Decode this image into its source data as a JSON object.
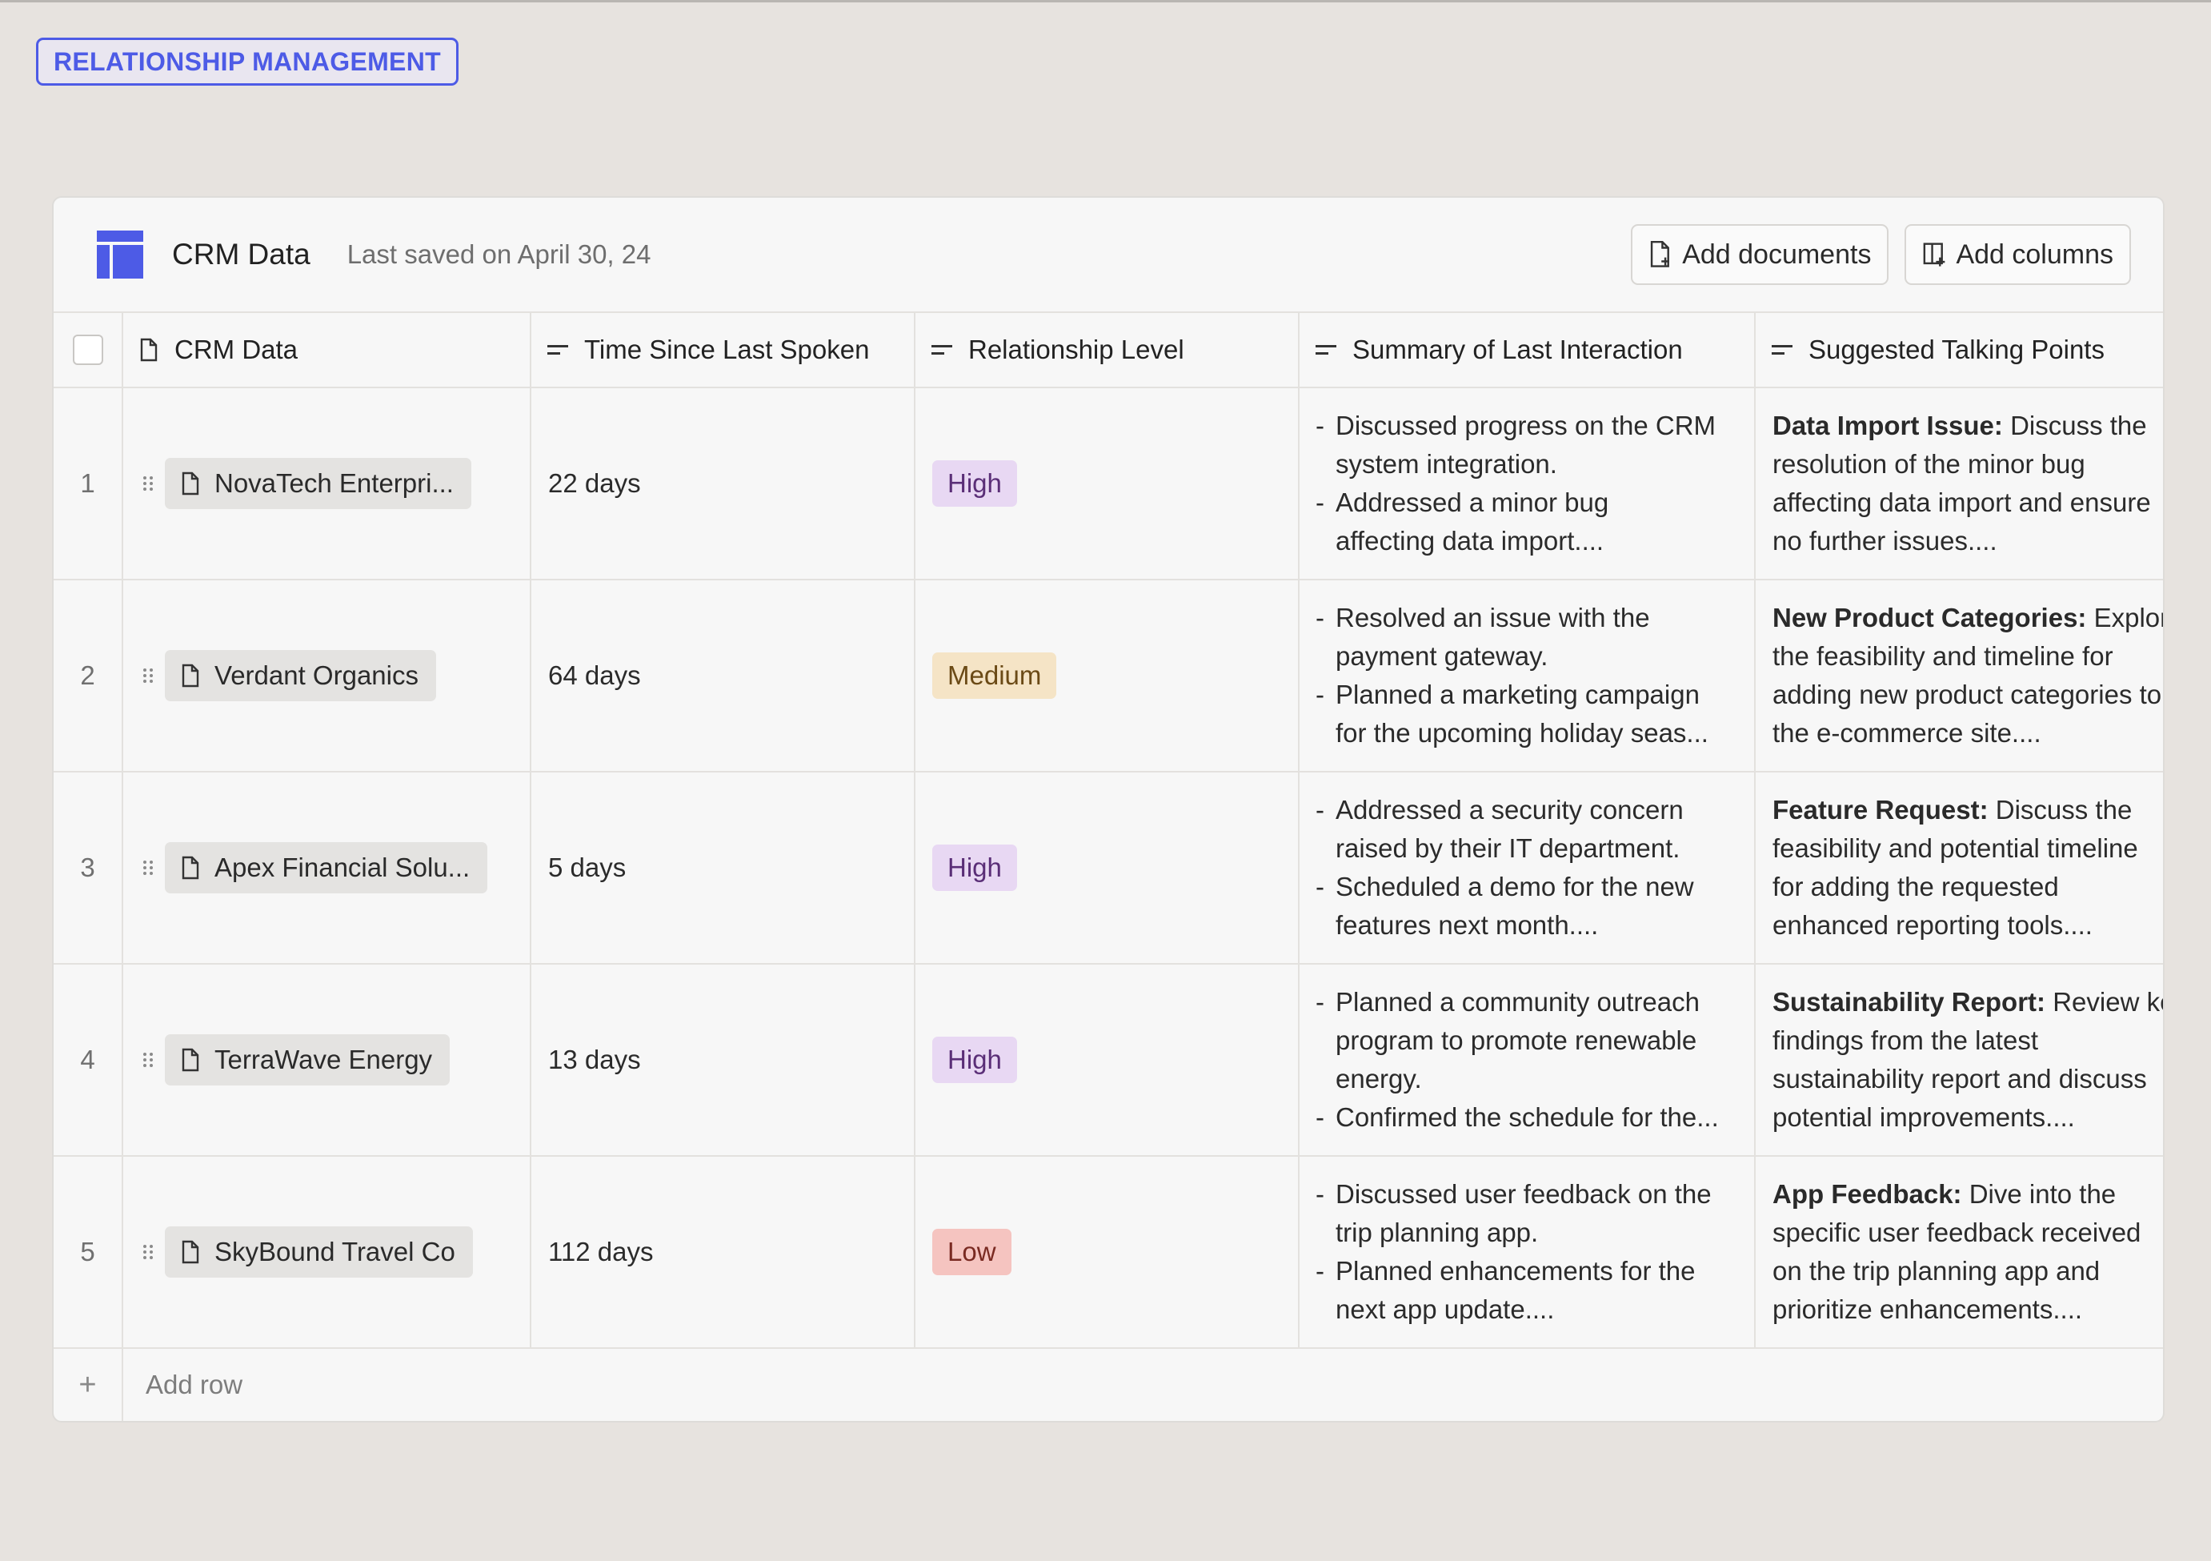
{
  "tag": "RELATIONSHIP MANAGEMENT",
  "header": {
    "title": "CRM Data",
    "saved": "Last saved on April 30, 24",
    "add_documents": "Add documents",
    "add_columns": "Add columns"
  },
  "columns": {
    "name": "CRM Data",
    "time": "Time Since Last Spoken",
    "level": "Relationship Level",
    "summary": "Summary of Last Interaction",
    "talking": "Suggested Talking Points"
  },
  "rows": [
    {
      "num": "1",
      "name": "NovaTech Enterpri...",
      "time": "22 days",
      "level": "High",
      "summary": [
        "Discussed progress on the CRM",
        "system integration.",
        "Addressed a minor bug",
        "affecting data import...."
      ],
      "talk_bold": "Data Import Issue:",
      "talk": [
        "Discuss the",
        "resolution of the minor bug",
        "affecting data import and ensure",
        "no further issues...."
      ]
    },
    {
      "num": "2",
      "name": "Verdant Organics",
      "time": "64 days",
      "level": "Medium",
      "summary": [
        "Resolved an issue with the",
        "payment gateway.",
        "Planned a marketing campaign",
        "for the upcoming holiday seas..."
      ],
      "talk_bold": "New Product Categories:",
      "talk": [
        "Explore",
        "the feasibility and timeline for",
        "adding new product categories to",
        "the e-commerce site...."
      ]
    },
    {
      "num": "3",
      "name": "Apex Financial Solu...",
      "time": "5 days",
      "level": "High",
      "summary": [
        "Addressed a security concern",
        "raised by their IT department.",
        "Scheduled a demo for the new",
        "features next month...."
      ],
      "talk_bold": "Feature Request:",
      "talk": [
        "Discuss the",
        "feasibility and potential timeline",
        "for adding the requested",
        "enhanced reporting tools...."
      ]
    },
    {
      "num": "4",
      "name": "TerraWave Energy",
      "time": "13 days",
      "level": "High",
      "summary": [
        "Planned a community outreach",
        "program to promote renewable",
        "energy.",
        "Confirmed the schedule for the..."
      ],
      "talk_bold": "Sustainability Report:",
      "talk": [
        "Review key",
        "findings from the latest",
        "sustainability report and discuss",
        "potential improvements...."
      ]
    },
    {
      "num": "5",
      "name": "SkyBound Travel Co",
      "time": "112 days",
      "level": "Low",
      "summary": [
        "Discussed user feedback on the",
        "trip planning app.",
        "Planned enhancements for the",
        "next app update...."
      ],
      "talk_bold": "App Feedback:",
      "talk": [
        "Dive into the",
        "specific user feedback received",
        "on the trip planning app and",
        "prioritize enhancements...."
      ]
    }
  ],
  "add_row": {
    "plus": "+",
    "label": "Add row"
  },
  "colors": {
    "accent": "#4d5be6",
    "high": "#e8d8f3",
    "medium": "#f5e4c6",
    "low": "#f5c4c0"
  }
}
